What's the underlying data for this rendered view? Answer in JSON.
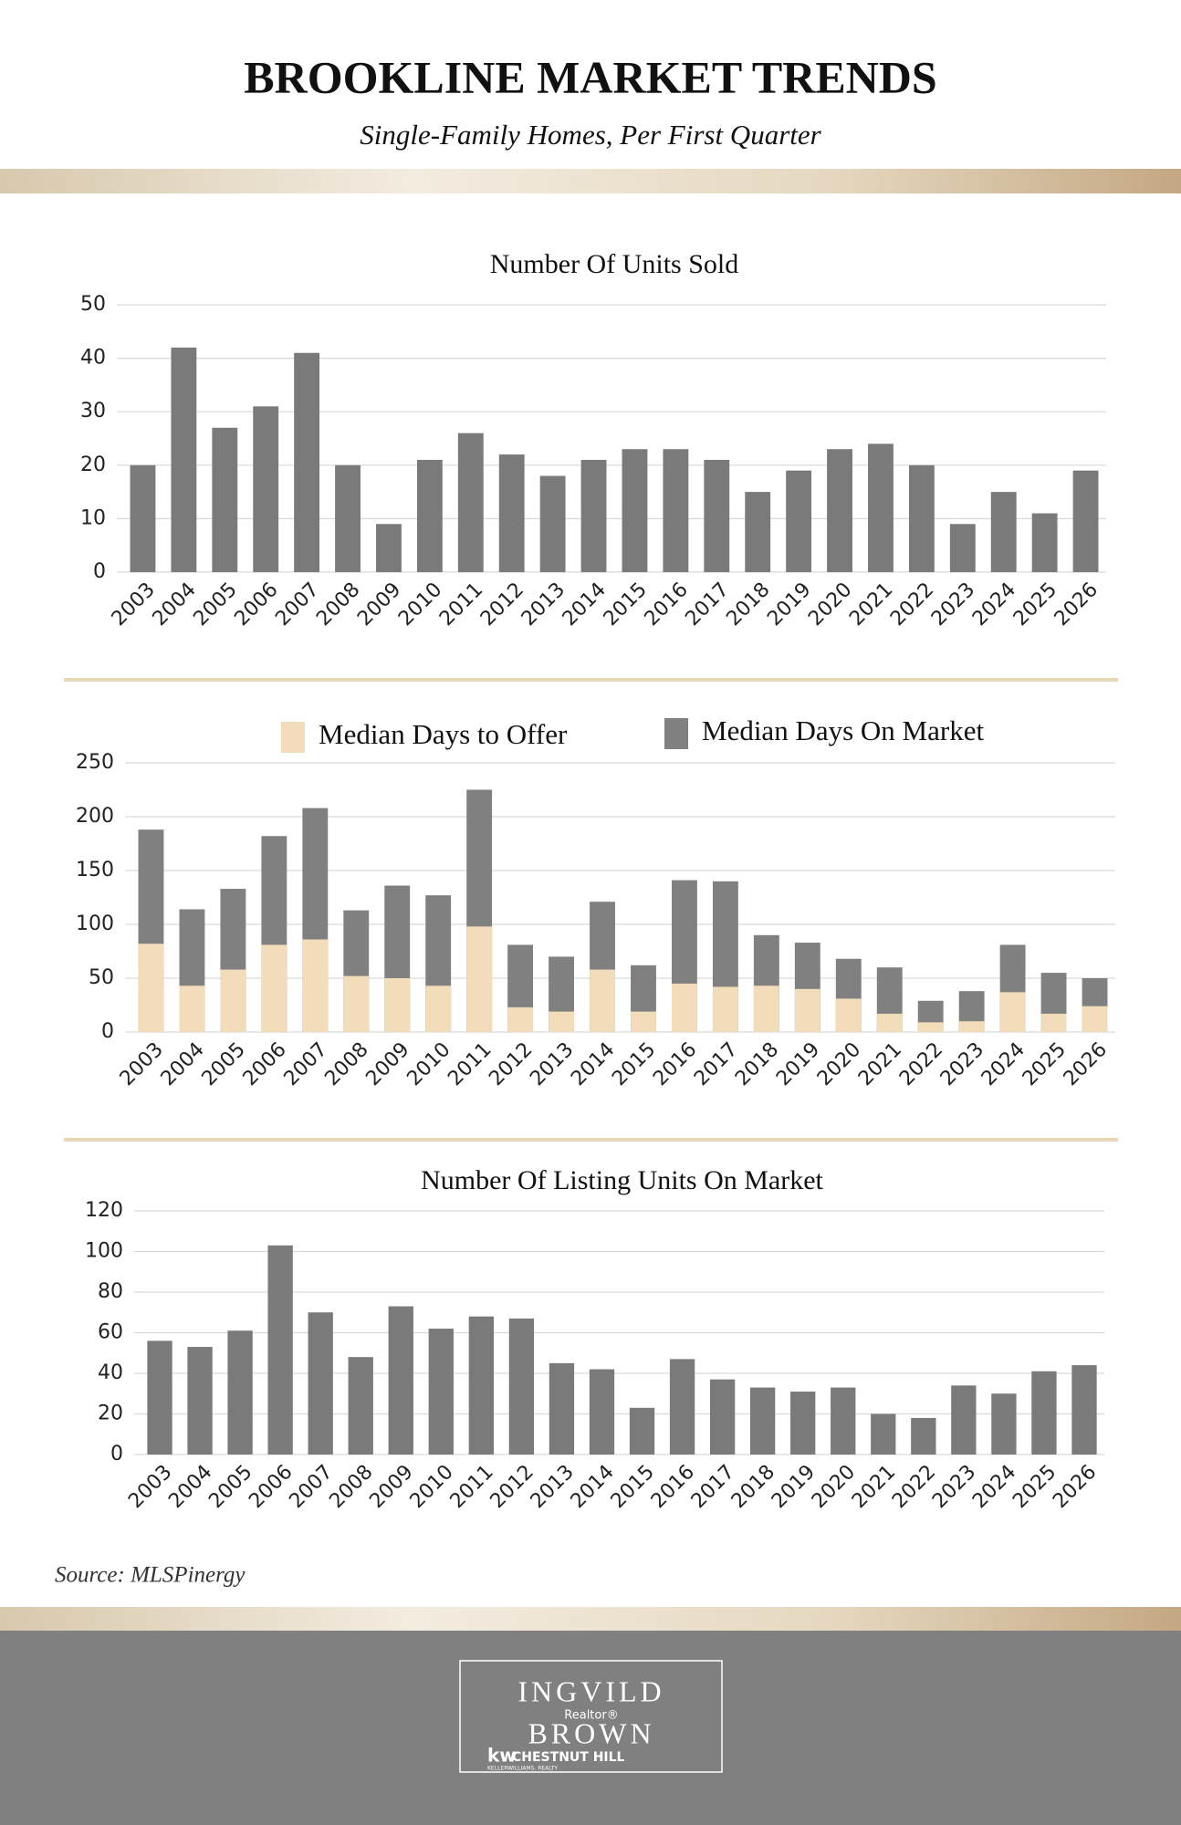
{
  "header": {
    "title": "BROOKLINE MARKET TRENDS",
    "subtitle": "Single-Family Homes, Per First Quarter"
  },
  "chart_data": [
    {
      "type": "bar",
      "title": "Number Of Units Sold",
      "categories": [
        "2003",
        "2004",
        "2005",
        "2006",
        "2007",
        "2008",
        "2009",
        "2010",
        "2011",
        "2012",
        "2013",
        "2014",
        "2015",
        "2016",
        "2017",
        "2018",
        "2019",
        "2020",
        "2021",
        "2022",
        "2023",
        "2024",
        "2025",
        "2026"
      ],
      "values": [
        20,
        42,
        27,
        31,
        41,
        20,
        9,
        21,
        26,
        22,
        18,
        21,
        23,
        23,
        21,
        15,
        19,
        23,
        24,
        20,
        9,
        15,
        11,
        19
      ],
      "color": "#7a7a7a",
      "ylim": [
        0,
        50
      ],
      "yticks": [
        0,
        10,
        20,
        30,
        40,
        50
      ],
      "grid": true
    },
    {
      "type": "bar",
      "categories": [
        "2003",
        "2004",
        "2005",
        "2006",
        "2007",
        "2008",
        "2009",
        "2010",
        "2011",
        "2012",
        "2013",
        "2014",
        "2015",
        "2016",
        "2017",
        "2018",
        "2019",
        "2020",
        "2021",
        "2022",
        "2023",
        "2024",
        "2025",
        "2026"
      ],
      "series": [
        {
          "name": "Median Days to Offer",
          "color": "#f2dcb9",
          "values": [
            82,
            43,
            58,
            81,
            86,
            52,
            50,
            43,
            98,
            23,
            19,
            58,
            19,
            45,
            42,
            43,
            40,
            31,
            17,
            9,
            10,
            37,
            17,
            24
          ]
        },
        {
          "name": "Median Days On Market",
          "color": "#808080",
          "values": [
            188,
            114,
            133,
            182,
            208,
            113,
            136,
            127,
            225,
            81,
            70,
            121,
            62,
            141,
            140,
            90,
            83,
            68,
            60,
            29,
            38,
            81,
            55,
            50
          ]
        }
      ],
      "ylim": [
        0,
        250
      ],
      "yticks": [
        0,
        50,
        100,
        150,
        200,
        250
      ],
      "grid": true,
      "legend": "top"
    },
    {
      "type": "bar",
      "title": "Number Of Listing Units On Market",
      "categories": [
        "2003",
        "2004",
        "2005",
        "2006",
        "2007",
        "2008",
        "2009",
        "2010",
        "2011",
        "2012",
        "2013",
        "2014",
        "2015",
        "2016",
        "2017",
        "2018",
        "2019",
        "2020",
        "2021",
        "2022",
        "2023",
        "2024",
        "2025",
        "2026"
      ],
      "values": [
        56,
        53,
        61,
        103,
        70,
        48,
        73,
        62,
        68,
        67,
        45,
        42,
        23,
        47,
        37,
        33,
        31,
        33,
        20,
        18,
        34,
        30,
        41,
        44
      ],
      "color": "#7a7a7a",
      "ylim": [
        0,
        120
      ],
      "yticks": [
        0,
        20,
        40,
        60,
        80,
        100,
        120
      ],
      "grid": true
    }
  ],
  "source": "Source: MLSPinergy",
  "footer": {
    "first": "INGVILD",
    "role": "Realtor®",
    "last": "BROWN",
    "brand": "kw",
    "office": "CHESTNUT HILL",
    "company": "KELLERWILLIAMS. REALTY"
  }
}
